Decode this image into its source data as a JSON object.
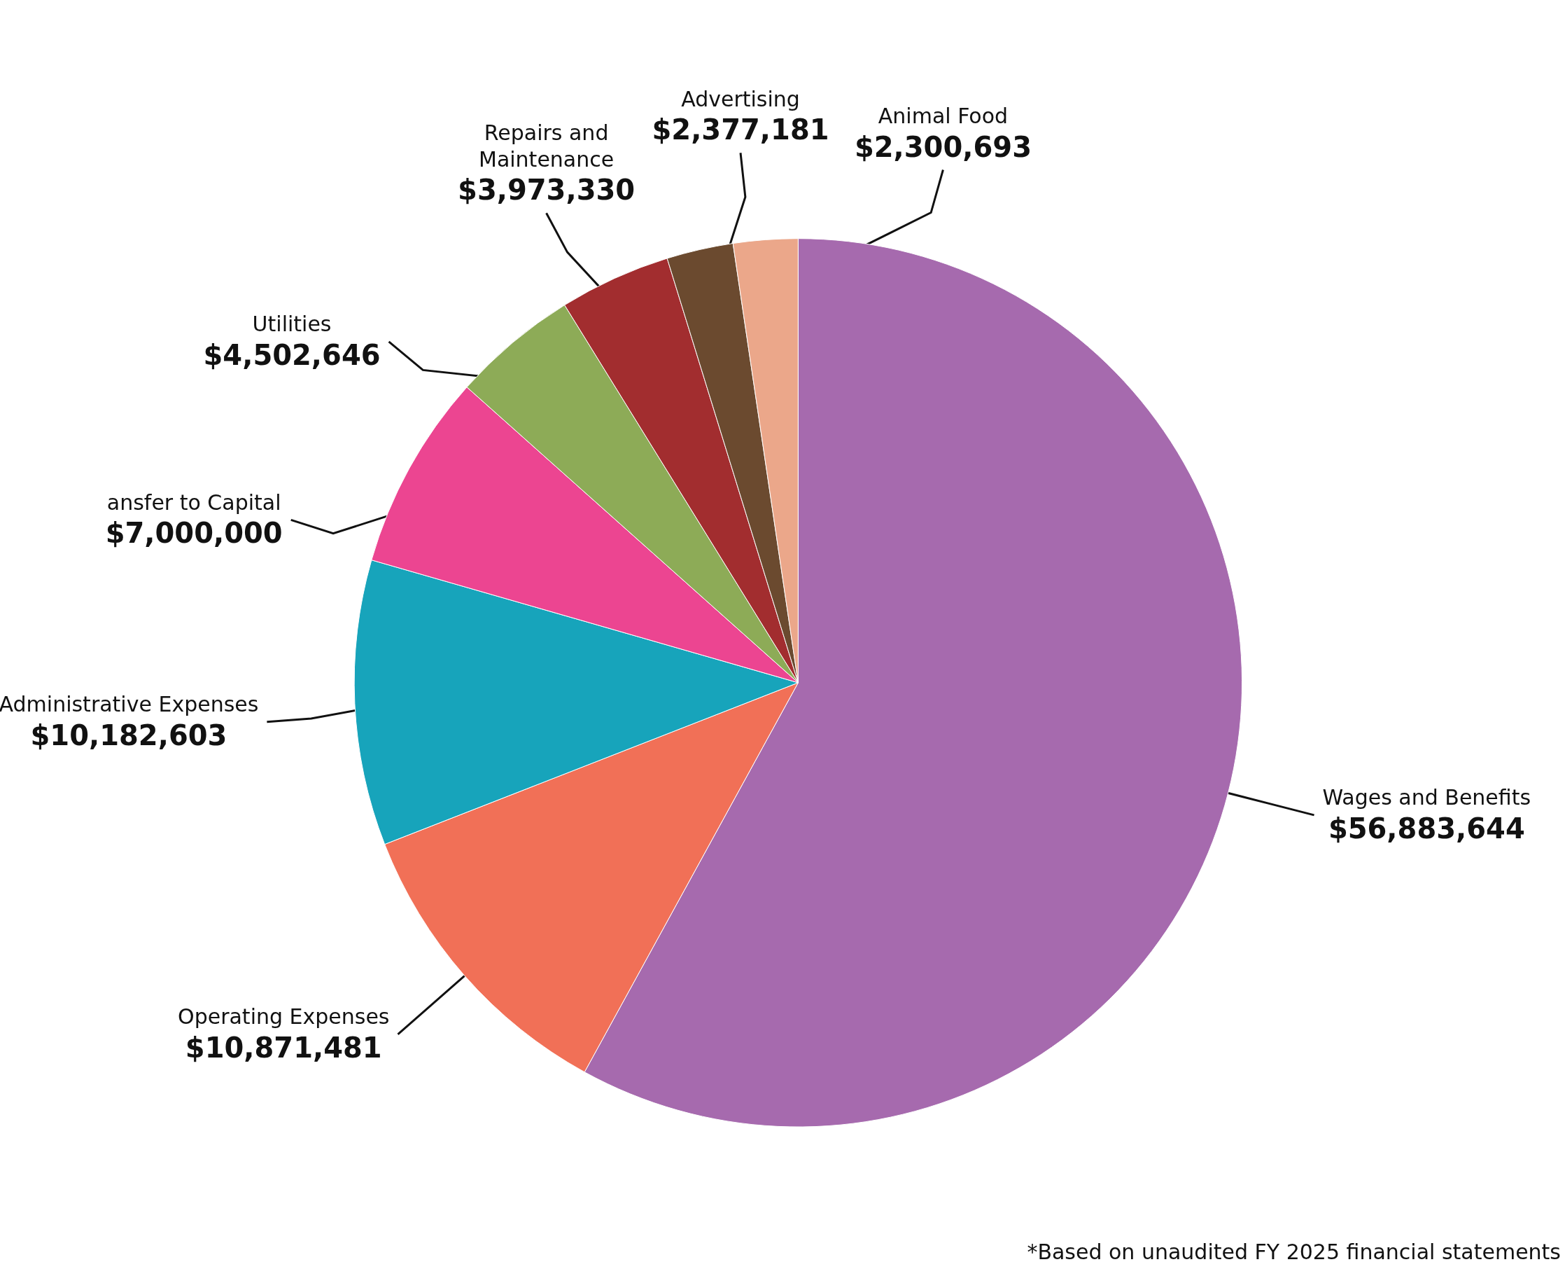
{
  "chart_data": {
    "type": "pie",
    "categories": [
      "Wages and Benefits",
      "Operating Expenses",
      "Administrative Expenses",
      "ansfer to Capital",
      "Utilities",
      "Repairs and\nMaintenance",
      "Advertising",
      "Animal Food"
    ],
    "values": [
      56883644,
      10871481,
      10182603,
      7000000,
      4502646,
      3973330,
      2377181,
      2300693
    ],
    "value_labels": [
      "$56,883,644",
      "$10,871,481",
      "$10,182,603",
      "$7,000,000",
      "$4,502,646",
      "$3,973,330",
      "$2,377,181",
      "$2,300,693"
    ],
    "colors": [
      "#a66aae",
      "#f17057",
      "#17a4bb",
      "#ec4591",
      "#8dab57",
      "#a22d2f",
      "#6b4a2f",
      "#eba78a"
    ],
    "annotations": [
      "*Based on unaudited FY 2025 financial statements"
    ],
    "legend": false
  }
}
